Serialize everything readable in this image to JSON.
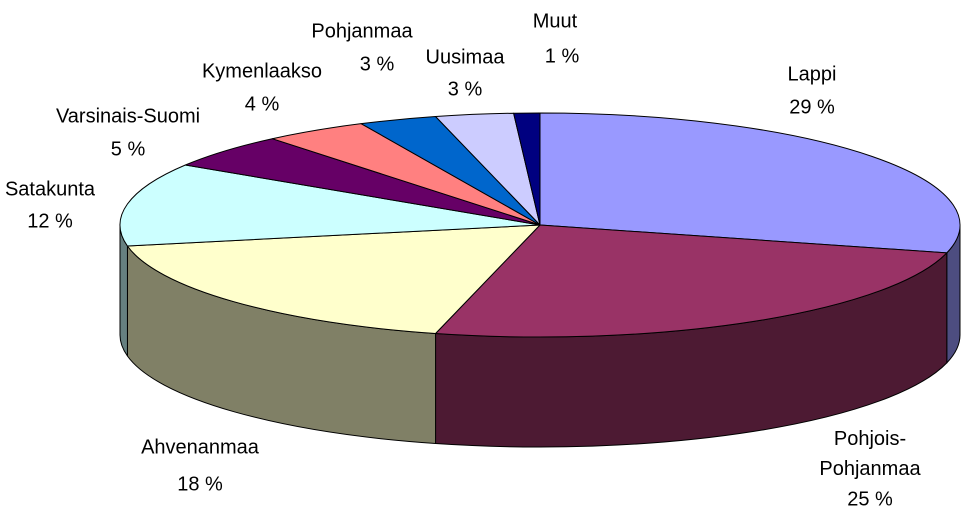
{
  "chart_data": {
    "type": "pie3d",
    "categories": [
      "Lappi",
      "Pohjois-Pohjanmaa",
      "Ahvenanmaa",
      "Satakunta",
      "Varsinais-Suomi",
      "Kymenlaakso",
      "Pohjanmaa",
      "Uusimaa",
      "Muut"
    ],
    "values": [
      29,
      25,
      18,
      12,
      5,
      4,
      3,
      3,
      1
    ],
    "value_labels": [
      "29 %",
      "25 %",
      "18 %",
      "12 %",
      "5 %",
      "4 %",
      "3 %",
      "3 %",
      "1 %"
    ],
    "colors": [
      "#9999ff",
      "#993366",
      "#ffffcc",
      "#ccffff",
      "#660066",
      "#ff8080",
      "#0066cc",
      "#ccccff",
      "#000080"
    ]
  }
}
